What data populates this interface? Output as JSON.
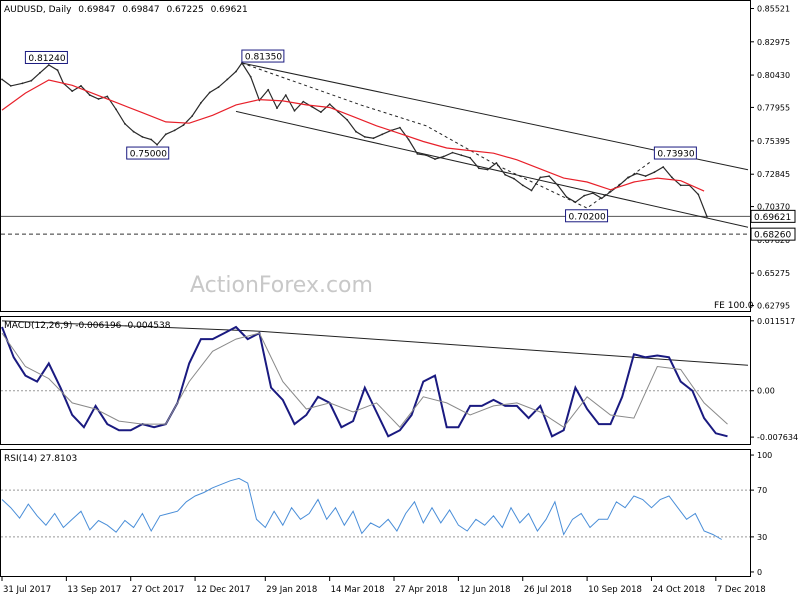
{
  "chart_data": [
    {
      "type": "line",
      "panel": "price",
      "title": "AUDUSD, Daily",
      "header_values": [
        "0.69847",
        "0.69847",
        "0.67225",
        "0.69621"
      ],
      "watermark": "ActionForex.com",
      "fe_label": "FE 100.0",
      "ylim": [
        0.6238,
        0.8602
      ],
      "y_ticks": [
        "0.85521",
        "0.82975",
        "0.80430",
        "0.77955",
        "0.75395",
        "0.72845",
        "0.70370",
        "0.67820",
        "0.65275",
        "0.62795"
      ],
      "current_price_label": "0.69621",
      "level_label": "0.68260",
      "horizontal_levels": [
        {
          "value": 0.69621,
          "style": "solid"
        },
        {
          "value": 0.6826,
          "style": "dashed"
        }
      ],
      "annotations": [
        {
          "text": "0.81240",
          "x": 8,
          "y": 0.8124
        },
        {
          "text": "0.81350",
          "x": 82,
          "y": 0.8135
        },
        {
          "text": "0.75000",
          "x": 44,
          "y": 0.75
        },
        {
          "text": "0.73930",
          "x": 223,
          "y": 0.7393
        },
        {
          "text": "0.70200",
          "x": 194,
          "y": 0.702
        }
      ],
      "trendlines": [
        {
          "style": "solid",
          "points": [
            [
              82,
              0.8135
            ],
            [
              255,
              0.7318
            ]
          ]
        },
        {
          "style": "solid",
          "points": [
            [
              80,
              0.7765
            ],
            [
              255,
              0.6878
            ]
          ]
        },
        {
          "style": "dashed",
          "points": [
            [
              82,
              0.8135
            ],
            [
              123,
              0.7812
            ],
            [
              145,
              0.7655
            ],
            [
              169,
              0.7355
            ],
            [
              200,
              0.7025
            ],
            [
              222,
              0.7385
            ]
          ]
        }
      ],
      "series": [
        {
          "name": "AUDUSD",
          "color": "#2a2a2a",
          "x": [
            0,
            3,
            7,
            10,
            13,
            16,
            19,
            21,
            24,
            27,
            30,
            33,
            36,
            39,
            42,
            45,
            48,
            51,
            53,
            56,
            59,
            62,
            65,
            68,
            71,
            74,
            77,
            80,
            82,
            85,
            88,
            91,
            94,
            97,
            100,
            103,
            106,
            109,
            112,
            115,
            118,
            121,
            124,
            127,
            130,
            133,
            136,
            139,
            142,
            145,
            148,
            151,
            154,
            157,
            160,
            163,
            166,
            169,
            172,
            175,
            178,
            181,
            184,
            187,
            190,
            193,
            196,
            199,
            202,
            205,
            208,
            211,
            214,
            217,
            220,
            223,
            226,
            229,
            232,
            235,
            238,
            241
          ],
          "values": [
            0.801,
            0.796,
            0.798,
            0.8,
            0.806,
            0.812,
            0.808,
            0.798,
            0.792,
            0.796,
            0.789,
            0.786,
            0.788,
            0.778,
            0.767,
            0.761,
            0.757,
            0.755,
            0.751,
            0.759,
            0.762,
            0.766,
            0.773,
            0.783,
            0.791,
            0.795,
            0.801,
            0.807,
            0.8135,
            0.803,
            0.785,
            0.793,
            0.779,
            0.789,
            0.777,
            0.784,
            0.78,
            0.776,
            0.782,
            0.776,
            0.77,
            0.761,
            0.757,
            0.756,
            0.759,
            0.762,
            0.764,
            0.755,
            0.744,
            0.743,
            0.74,
            0.742,
            0.745,
            0.743,
            0.741,
            0.733,
            0.732,
            0.737,
            0.728,
            0.725,
            0.72,
            0.716,
            0.726,
            0.727,
            0.72,
            0.711,
            0.707,
            0.712,
            0.714,
            0.71,
            0.715,
            0.72,
            0.726,
            0.729,
            0.727,
            0.73,
            0.734,
            0.726,
            0.72,
            0.72,
            0.713,
            0.696
          ]
        },
        {
          "name": "55MA",
          "color": "#e8202a",
          "x": [
            0,
            8,
            16,
            24,
            32,
            40,
            48,
            56,
            64,
            72,
            80,
            88,
            96,
            104,
            112,
            120,
            128,
            136,
            144,
            152,
            160,
            168,
            176,
            184,
            192,
            200,
            208,
            216,
            224,
            232,
            240
          ],
          "values": [
            0.7775,
            0.7905,
            0.8005,
            0.7965,
            0.7895,
            0.7825,
            0.7755,
            0.7685,
            0.7675,
            0.7735,
            0.7815,
            0.7855,
            0.7845,
            0.7815,
            0.7795,
            0.7725,
            0.7655,
            0.7595,
            0.7535,
            0.7485,
            0.7465,
            0.7445,
            0.7395,
            0.7325,
            0.7255,
            0.7225,
            0.7165,
            0.7225,
            0.7255,
            0.7235,
            0.7155
          ]
        }
      ]
    },
    {
      "type": "line",
      "panel": "macd",
      "title": "MACD(12,26,9) -0.006196 -0.004538",
      "ylim": [
        -0.00877,
        0.01198
      ],
      "y_ticks": [
        "0.011517",
        "0.00",
        "-0.007634"
      ],
      "trendline": [
        [
          0,
          0.0115
        ],
        [
          88,
          0.0098
        ],
        [
          255,
          0.0042
        ]
      ],
      "series": [
        {
          "name": "MACD",
          "color": "#1a1a80",
          "x": [
            0,
            4,
            8,
            12,
            16,
            20,
            24,
            28,
            32,
            36,
            40,
            44,
            48,
            52,
            56,
            60,
            64,
            68,
            72,
            76,
            80,
            84,
            88,
            92,
            96,
            100,
            104,
            108,
            112,
            116,
            120,
            124,
            128,
            132,
            136,
            140,
            144,
            148,
            152,
            156,
            160,
            164,
            168,
            172,
            176,
            180,
            184,
            188,
            192,
            196,
            200,
            204,
            208,
            212,
            216,
            220,
            224,
            228,
            232,
            236,
            240,
            244,
            248
          ],
          "values": [
            0.0105,
            0.0055,
            0.0025,
            0.0015,
            0.0045,
            0.0005,
            -0.004,
            -0.006,
            -0.0025,
            -0.0055,
            -0.0065,
            -0.0065,
            -0.0055,
            -0.006,
            -0.0055,
            -0.002,
            0.0045,
            0.0085,
            0.0085,
            0.0095,
            0.0105,
            0.0085,
            0.0095,
            0.0005,
            -0.0015,
            -0.0055,
            -0.004,
            -0.001,
            -0.002,
            -0.006,
            -0.005,
            0.0005,
            -0.0035,
            -0.0075,
            -0.0065,
            -0.004,
            0.0015,
            0.0025,
            -0.006,
            -0.006,
            -0.0025,
            -0.0025,
            -0.0015,
            -0.0025,
            -0.0025,
            -0.0045,
            -0.0025,
            -0.0075,
            -0.0065,
            0.0005,
            -0.003,
            -0.0055,
            -0.0055,
            -0.001,
            0.006,
            0.0055,
            0.0058,
            0.0055,
            0.0015,
            0.0,
            -0.0045,
            -0.007,
            -0.0075
          ]
        },
        {
          "name": "Signal",
          "color": "#8a8a8a",
          "x": [
            0,
            8,
            16,
            24,
            32,
            40,
            48,
            56,
            64,
            72,
            80,
            88,
            96,
            104,
            112,
            120,
            128,
            136,
            144,
            152,
            160,
            168,
            176,
            184,
            192,
            200,
            208,
            216,
            224,
            232,
            240,
            248
          ],
          "values": [
            0.0095,
            0.004,
            0.002,
            -0.002,
            -0.003,
            -0.005,
            -0.0055,
            -0.0055,
            0.0015,
            0.0065,
            0.0085,
            0.0095,
            0.0015,
            -0.003,
            -0.002,
            -0.0035,
            -0.002,
            -0.006,
            -0.001,
            -0.002,
            -0.004,
            -0.0025,
            -0.002,
            -0.0035,
            -0.006,
            -0.001,
            -0.004,
            -0.0045,
            0.004,
            0.0035,
            -0.002,
            -0.0055
          ]
        }
      ]
    },
    {
      "type": "line",
      "panel": "rsi",
      "title": "RSI(14) 27.8103",
      "ylim": [
        -3.46,
        103.46
      ],
      "y_ticks": [
        "100",
        "70",
        "30",
        "0"
      ],
      "reference_levels": [
        70,
        30
      ],
      "series": [
        {
          "name": "RSI",
          "color": "#4a8ed8",
          "x": [
            0,
            3,
            6,
            9,
            12,
            15,
            18,
            21,
            24,
            27,
            30,
            33,
            36,
            39,
            42,
            45,
            48,
            51,
            54,
            57,
            60,
            63,
            66,
            69,
            72,
            75,
            78,
            81,
            84,
            87,
            90,
            93,
            96,
            99,
            102,
            105,
            108,
            111,
            114,
            117,
            120,
            123,
            126,
            129,
            132,
            135,
            138,
            141,
            144,
            147,
            150,
            153,
            156,
            159,
            162,
            165,
            168,
            171,
            174,
            177,
            180,
            183,
            186,
            189,
            192,
            195,
            198,
            201,
            204,
            207,
            210,
            213,
            216,
            219,
            222,
            225,
            228,
            231,
            234,
            237,
            240,
            243,
            246
          ],
          "values": [
            62,
            55,
            46,
            58,
            48,
            40,
            50,
            38,
            45,
            52,
            36,
            44,
            40,
            34,
            44,
            38,
            50,
            35,
            48,
            50,
            52,
            60,
            65,
            68,
            72,
            75,
            78,
            80,
            76,
            45,
            38,
            52,
            40,
            55,
            45,
            50,
            62,
            45,
            55,
            40,
            52,
            33,
            42,
            38,
            45,
            35,
            50,
            60,
            42,
            55,
            42,
            53,
            40,
            35,
            45,
            40,
            48,
            38,
            55,
            42,
            50,
            35,
            45,
            60,
            32,
            45,
            50,
            38,
            45,
            45,
            60,
            55,
            65,
            62,
            55,
            62,
            65,
            55,
            45,
            50,
            35,
            32,
            27.8
          ]
        }
      ]
    },
    {
      "type": "axis",
      "panel": "x_axis",
      "x_ticks": [
        {
          "x": 0,
          "label": "31 Jul 2017"
        },
        {
          "x": 22,
          "label": "13 Sep 2017"
        },
        {
          "x": 44,
          "label": "27 Oct 2017"
        },
        {
          "x": 66,
          "label": "12 Dec 2017"
        },
        {
          "x": 90,
          "label": "29 Jan 2018"
        },
        {
          "x": 112,
          "label": "14 Mar 2018"
        },
        {
          "x": 134,
          "label": "27 Apr 2018"
        },
        {
          "x": 156,
          "label": "12 Jun 2018"
        },
        {
          "x": 178,
          "label": "26 Jul 2018"
        },
        {
          "x": 200,
          "label": "10 Sep 2018"
        },
        {
          "x": 222,
          "label": "24 Oct 2018"
        },
        {
          "x": 244,
          "label": "7 Dec 2018"
        }
      ]
    }
  ]
}
